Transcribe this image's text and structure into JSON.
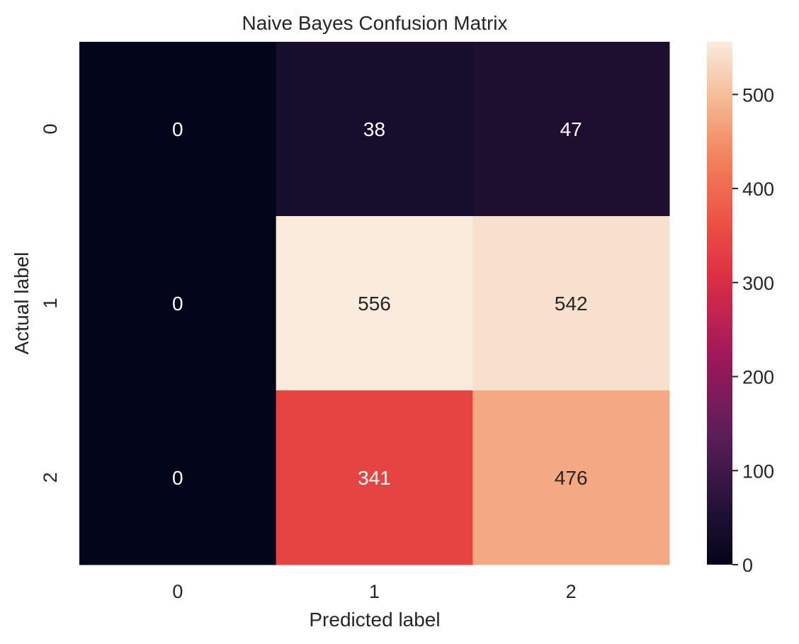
{
  "chart_data": {
    "type": "heatmap",
    "title": "Naive Bayes Confusion Matrix",
    "xlabel": "Predicted label",
    "ylabel": "Actual label",
    "x_categories": [
      "0",
      "1",
      "2"
    ],
    "y_categories": [
      "0",
      "1",
      "2"
    ],
    "matrix": [
      [
        0,
        38,
        47
      ],
      [
        0,
        556,
        542
      ],
      [
        0,
        341,
        476
      ]
    ],
    "colorbar": {
      "range": [
        0,
        556
      ],
      "ticks": [
        0,
        100,
        200,
        300,
        400,
        500
      ],
      "colormap": "rocket"
    }
  }
}
